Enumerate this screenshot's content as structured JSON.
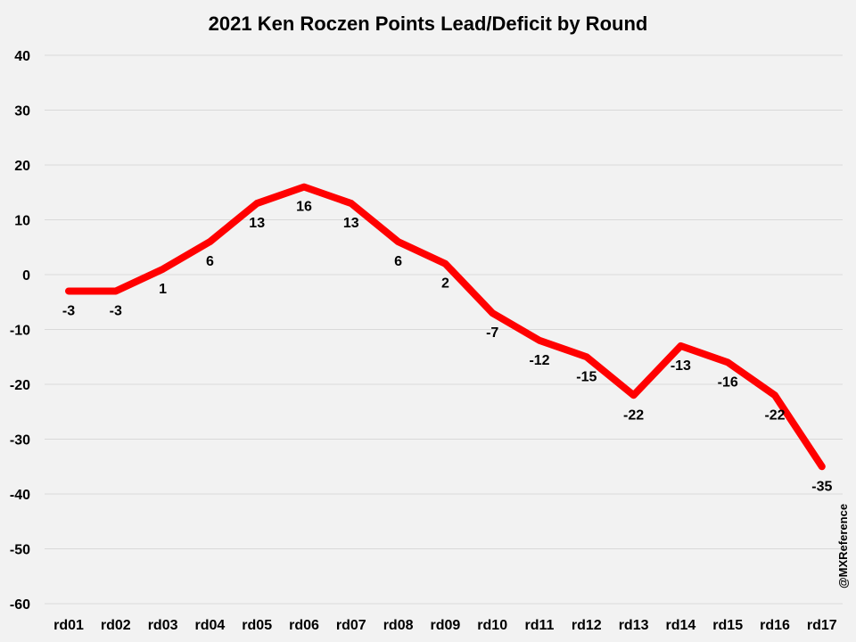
{
  "chart_data": {
    "type": "line",
    "title": "2021 Ken Roczen Points Lead/Deficit by Round",
    "xlabel": "",
    "ylabel": "",
    "categories": [
      "rd01",
      "rd02",
      "rd03",
      "rd04",
      "rd05",
      "rd06",
      "rd07",
      "rd08",
      "rd09",
      "rd10",
      "rd11",
      "rd12",
      "rd13",
      "rd14",
      "rd15",
      "rd16",
      "rd17"
    ],
    "series": [
      {
        "name": "Points Lead/Deficit",
        "values": [
          -3,
          -3,
          1,
          6,
          13,
          16,
          13,
          6,
          2,
          -7,
          -12,
          -15,
          -22,
          -13,
          -16,
          -22,
          -35
        ],
        "data_labels": [
          "-3",
          "-3",
          "1",
          "6",
          "13",
          "16",
          "13",
          "6",
          "2",
          "-7",
          "-12",
          "-15",
          "-22",
          "-13",
          "-16",
          "-22",
          "-35"
        ]
      }
    ],
    "ylim": [
      -60,
      40
    ],
    "yticks": [
      40,
      30,
      20,
      10,
      0,
      -10,
      -20,
      -30,
      -40,
      -50,
      -60
    ],
    "ytick_labels": [
      "40",
      "30",
      "20",
      "10",
      "0",
      "-10",
      "-20",
      "-30",
      "-40",
      "-50",
      "-60"
    ],
    "grid": true,
    "legend": "none"
  },
  "colors": {
    "line": "#ff0000",
    "background": "#f2f2f2",
    "gridline": "#d9d9d9"
  },
  "watermark": "@MXReference"
}
